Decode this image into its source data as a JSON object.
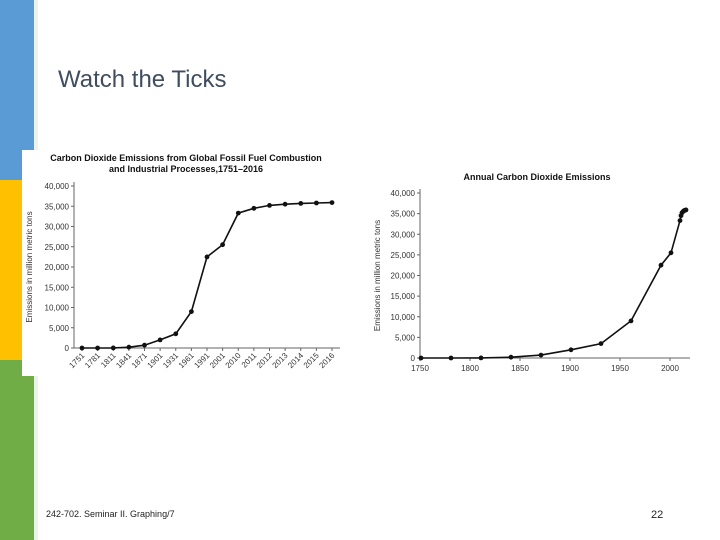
{
  "slide": {
    "title": "Watch the Ticks",
    "footer": "242-702. Seminar II. Graphing/7",
    "page_number": "22"
  },
  "colors": {
    "accent_blue": "#5b9bd5",
    "accent_yellow": "#ffc000",
    "accent_green": "#70ad47",
    "series": "#111111",
    "title_text": "#3f4d5f"
  },
  "chart_data": [
    {
      "type": "line",
      "title": "Carbon Dioxide Emissions from Global Fossil Fuel Combustion and Industrial Processes,1751–2016",
      "title_lines": [
        "Carbon Dioxide Emissions from Global Fossil Fuel Combustion",
        "and Industrial Processes,1751–2016"
      ],
      "xlabel": "",
      "ylabel": "Emissions in million metric tons",
      "x_axis": "categorical",
      "categories": [
        "1751",
        "1781",
        "1811",
        "1841",
        "1871",
        "1901",
        "1931",
        "1961",
        "1991",
        "2001",
        "2010",
        "2011",
        "2012",
        "2013",
        "2014",
        "2015",
        "2016"
      ],
      "values": [
        3,
        10,
        30,
        200,
        700,
        2000,
        3500,
        9000,
        22500,
        25500,
        33300,
        34500,
        35200,
        35500,
        35700,
        35800,
        35900
      ],
      "yticks": [
        0,
        5000,
        10000,
        15000,
        20000,
        25000,
        30000,
        35000,
        40000
      ],
      "ytick_labels": [
        "0",
        "5,000",
        "10,000",
        "15,000",
        "20,000",
        "25,000",
        "30,000",
        "35,000",
        "40,000"
      ],
      "ylim": [
        0,
        40000
      ],
      "grid": false
    },
    {
      "type": "line",
      "title": "Annual Carbon Dioxide Emissions",
      "xlabel": "",
      "ylabel": "Emissions in million metric tons",
      "x_axis": "numeric",
      "x": [
        1751,
        1781,
        1811,
        1841,
        1871,
        1901,
        1931,
        1961,
        1991,
        2001,
        2010,
        2011,
        2012,
        2013,
        2014,
        2015,
        2016
      ],
      "values": [
        3,
        10,
        30,
        200,
        700,
        2000,
        3500,
        9000,
        22500,
        25500,
        33300,
        34500,
        35200,
        35500,
        35700,
        35800,
        35900
      ],
      "xticks": [
        1750,
        1800,
        1850,
        1900,
        1950,
        2000
      ],
      "xtick_labels": [
        "1750",
        "1800",
        "1850",
        "1900",
        "1950",
        "2000"
      ],
      "xlim": [
        1750,
        2020
      ],
      "yticks": [
        0,
        5000,
        10000,
        15000,
        20000,
        25000,
        30000,
        35000,
        40000
      ],
      "ytick_labels": [
        "0",
        "5,000",
        "10,000",
        "15,000",
        "20,000",
        "25,000",
        "30,000",
        "35,000",
        "40,000"
      ],
      "ylim": [
        0,
        40000
      ],
      "grid": false
    }
  ]
}
